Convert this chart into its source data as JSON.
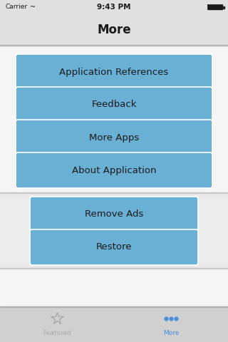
{
  "bg_color": "#e8e8e8",
  "header_bg": "#e0e0e0",
  "status_carrier": "Carrier",
  "status_time": "9:43 PM",
  "nav_title": "More",
  "button_color": "#6aafd4",
  "button_text_color": "#1a1a1a",
  "buttons_group1": [
    "Application References",
    "Feedback",
    "More Apps",
    "About Application"
  ],
  "buttons_group2": [
    "Remove Ads",
    "Restore"
  ],
  "tab_bar_bg": "#d0d0d0",
  "tab_label_featured": "Featured",
  "tab_label_more": "More",
  "tab_color_inactive": "#aaaaaa",
  "tab_color_active": "#4a90d9",
  "group2_bg": "#e8e8e8",
  "group2_border": "#cccccc",
  "white_sep": "#ffffff",
  "content_bg": "#f5f5f5"
}
